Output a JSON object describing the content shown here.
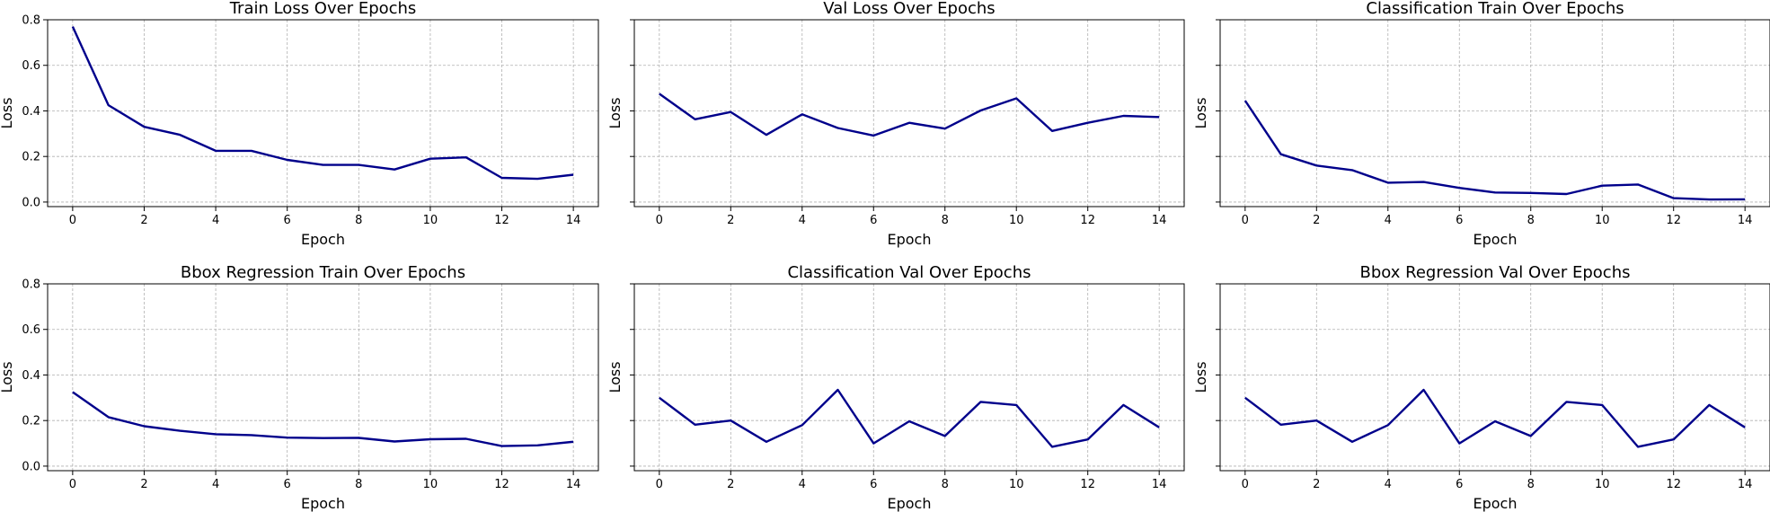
{
  "colors": {
    "line": "#00008b",
    "grid": "#b0b0b0",
    "axes": "#000000"
  },
  "chart_data": [
    {
      "type": "line",
      "title": "Train Loss Over Epochs",
      "xlabel": "Epoch",
      "ylabel": "Loss",
      "xlim": [
        -0.7,
        14.7
      ],
      "ylim": [
        -0.02,
        0.8
      ],
      "xticks": [
        0,
        2,
        4,
        6,
        8,
        10,
        12,
        14
      ],
      "yticks": [
        0.0,
        0.2,
        0.4,
        0.6,
        0.8
      ],
      "ytick_labels": [
        "0.0",
        "0.2",
        "0.4",
        "0.6",
        "0.8"
      ],
      "grid": true,
      "x": [
        0,
        1,
        2,
        3,
        4,
        5,
        6,
        7,
        8,
        9,
        10,
        11,
        12,
        13,
        14
      ],
      "values": [
        0.77,
        0.425,
        0.33,
        0.295,
        0.225,
        0.225,
        0.185,
        0.163,
        0.163,
        0.143,
        0.19,
        0.196,
        0.106,
        0.102,
        0.12
      ]
    },
    {
      "type": "line",
      "title": "Val Loss Over Epochs",
      "xlabel": "Epoch",
      "ylabel": "Loss",
      "xlim": [
        -0.7,
        14.7
      ],
      "ylim": [
        -0.02,
        0.8
      ],
      "xticks": [
        0,
        2,
        4,
        6,
        8,
        10,
        12,
        14
      ],
      "yticks": [
        0.0,
        0.2,
        0.4,
        0.6,
        0.8
      ],
      "ytick_labels": [
        "",
        "",
        "",
        "",
        ""
      ],
      "grid": true,
      "x": [
        0,
        1,
        2,
        3,
        4,
        5,
        6,
        7,
        8,
        9,
        10,
        11,
        12,
        13,
        14
      ],
      "values": [
        0.475,
        0.363,
        0.395,
        0.295,
        0.385,
        0.325,
        0.292,
        0.348,
        0.322,
        0.402,
        0.455,
        0.312,
        0.348,
        0.378,
        0.373
      ]
    },
    {
      "type": "line",
      "title": "Classification Train Over Epochs",
      "xlabel": "Epoch",
      "ylabel": "Loss",
      "xlim": [
        -0.7,
        14.7
      ],
      "ylim": [
        -0.02,
        0.8
      ],
      "xticks": [
        0,
        2,
        4,
        6,
        8,
        10,
        12,
        14
      ],
      "yticks": [
        0.0,
        0.2,
        0.4,
        0.6,
        0.8
      ],
      "ytick_labels": [
        "",
        "",
        "",
        "",
        ""
      ],
      "grid": true,
      "x": [
        0,
        1,
        2,
        3,
        4,
        5,
        6,
        7,
        8,
        9,
        10,
        11,
        12,
        13,
        14
      ],
      "values": [
        0.445,
        0.21,
        0.16,
        0.14,
        0.085,
        0.088,
        0.062,
        0.042,
        0.04,
        0.035,
        0.072,
        0.077,
        0.017,
        0.011,
        0.012
      ]
    },
    {
      "type": "line",
      "title": "Bbox Regression Train Over Epochs",
      "xlabel": "Epoch",
      "ylabel": "Loss",
      "xlim": [
        -0.7,
        14.7
      ],
      "ylim": [
        -0.02,
        0.8
      ],
      "xticks": [
        0,
        2,
        4,
        6,
        8,
        10,
        12,
        14
      ],
      "yticks": [
        0.0,
        0.2,
        0.4,
        0.6,
        0.8
      ],
      "ytick_labels": [
        "0.0",
        "0.2",
        "0.4",
        "0.6",
        "0.8"
      ],
      "grid": true,
      "x": [
        0,
        1,
        2,
        3,
        4,
        5,
        6,
        7,
        8,
        9,
        10,
        11,
        12,
        13,
        14
      ],
      "values": [
        0.325,
        0.215,
        0.175,
        0.155,
        0.14,
        0.136,
        0.125,
        0.123,
        0.124,
        0.108,
        0.118,
        0.12,
        0.088,
        0.091,
        0.107
      ]
    },
    {
      "type": "line",
      "title": "Classification Val Over Epochs",
      "xlabel": "Epoch",
      "ylabel": "Loss",
      "xlim": [
        -0.7,
        14.7
      ],
      "ylim": [
        -0.02,
        0.8
      ],
      "xticks": [
        0,
        2,
        4,
        6,
        8,
        10,
        12,
        14
      ],
      "yticks": [
        0.0,
        0.2,
        0.4,
        0.6,
        0.8
      ],
      "ytick_labels": [
        "",
        "",
        "",
        "",
        ""
      ],
      "grid": true,
      "x": [
        0,
        1,
        2,
        3,
        4,
        5,
        6,
        7,
        8,
        9,
        10,
        11,
        12,
        13,
        14
      ],
      "values": [
        0.3,
        0.182,
        0.2,
        0.107,
        0.18,
        0.335,
        0.1,
        0.197,
        0.132,
        0.282,
        0.268,
        0.085,
        0.117,
        0.268,
        0.17
      ]
    },
    {
      "type": "line",
      "title": "Bbox Regression Val Over Epochs",
      "xlabel": "Epoch",
      "ylabel": "Loss",
      "xlim": [
        -0.7,
        14.7
      ],
      "ylim": [
        -0.02,
        0.8
      ],
      "xticks": [
        0,
        2,
        4,
        6,
        8,
        10,
        12,
        14
      ],
      "yticks": [
        0.0,
        0.2,
        0.4,
        0.6,
        0.8
      ],
      "ytick_labels": [
        "",
        "",
        "",
        "",
        ""
      ],
      "grid": true,
      "x": [
        0,
        1,
        2,
        3,
        4,
        5,
        6,
        7,
        8,
        9,
        10,
        11,
        12,
        13,
        14
      ],
      "values": [
        0.3,
        0.182,
        0.2,
        0.107,
        0.18,
        0.335,
        0.1,
        0.197,
        0.132,
        0.282,
        0.268,
        0.085,
        0.117,
        0.268,
        0.17
      ]
    }
  ]
}
